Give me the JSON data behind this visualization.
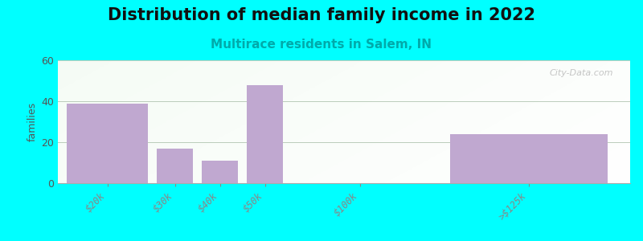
{
  "title": "Distribution of median family income in 2022",
  "subtitle": "Multirace residents in Salem, IN",
  "categories": [
    "$20k",
    "$30k",
    "$40k",
    "$50k",
    "$100k",
    ">$125k"
  ],
  "values": [
    39,
    17,
    11,
    48,
    0,
    24
  ],
  "bar_color": "#C0A8D0",
  "ylabel": "families",
  "ylim": [
    0,
    60
  ],
  "yticks": [
    0,
    20,
    40,
    60
  ],
  "bg_outer": "#00FFFF",
  "title_fontsize": 15,
  "subtitle_fontsize": 11,
  "subtitle_color": "#00AAAA",
  "watermark": "City-Data.com",
  "grid_color": "#BBCCBB",
  "spine_color": "#AAAAAA"
}
